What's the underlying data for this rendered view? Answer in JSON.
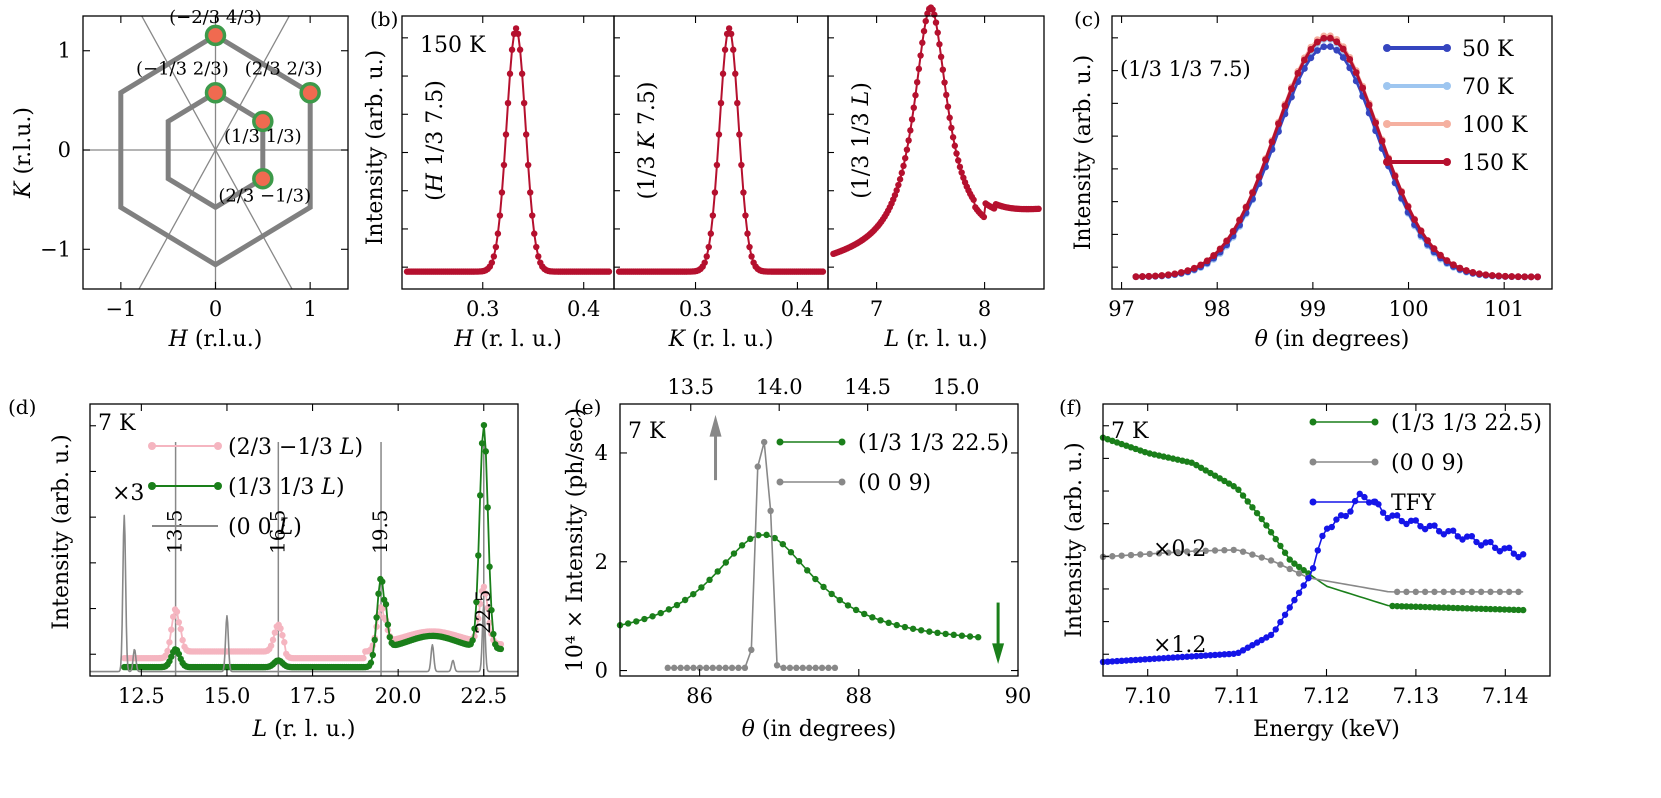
{
  "panels": [
    {
      "id": "a",
      "label": "",
      "x_label": {
        "pre": "",
        "it": "H",
        "post": " (r.l.u.)"
      },
      "y_label": {
        "pre": "",
        "it": "K",
        "post": " (r.l.u.)"
      },
      "x_ticks": [
        {
          "v": -1,
          "t": "−1"
        },
        {
          "v": 0,
          "t": "0"
        },
        {
          "v": 1,
          "t": "1"
        }
      ],
      "y_ticks": [
        {
          "v": -1,
          "t": "−1"
        },
        {
          "v": 0,
          "t": "0"
        },
        {
          "v": 1,
          "t": "1"
        }
      ],
      "xlim": [
        -1.4,
        1.4
      ],
      "ylim": [
        -1.4,
        1.35
      ],
      "annotations": [
        {
          "t": "(−2/3 4/3)",
          "x": 0.0,
          "y": 1.28
        },
        {
          "t": "(−1/3 2/3)",
          "x": -0.35,
          "y": 0.76
        },
        {
          "t": "(2/3 2/3)",
          "x": 0.72,
          "y": 0.76
        },
        {
          "t": "(1/3 1/3)",
          "x": 0.5,
          "y": 0.08
        },
        {
          "t": "(2/3 −1/3)",
          "x": 0.52,
          "y": -0.52
        }
      ]
    },
    {
      "id": "b1",
      "label": "(b)",
      "temp": "150 K",
      "x_label": {
        "pre": "",
        "it": "H",
        "post": " (r. l. u.)"
      },
      "y_label": {
        "pre": "Intensity (arb. u.)",
        "it": "",
        "post": ""
      },
      "inner": {
        "pre": "(",
        "it": "H",
        "post": " 1/3 7.5)"
      },
      "x_ticks": [
        {
          "v": 0.3,
          "t": "0.3"
        },
        {
          "v": 0.4,
          "t": "0.4"
        }
      ]
    },
    {
      "id": "b2",
      "label": "",
      "x_label": {
        "pre": "",
        "it": "K",
        "post": " (r. l. u.)"
      },
      "inner": {
        "pre": "(1/3 ",
        "it": "K",
        "post": " 7.5)"
      },
      "x_ticks": [
        {
          "v": 0.3,
          "t": "0.3"
        },
        {
          "v": 0.4,
          "t": "0.4"
        }
      ]
    },
    {
      "id": "b3",
      "label": "",
      "x_label": {
        "pre": "",
        "it": "L",
        "post": " (r. l. u.)"
      },
      "inner": {
        "pre": "(1/3 1/3 ",
        "it": "L",
        "post": ")"
      },
      "x_ticks": [
        {
          "v": 7,
          "t": "7"
        },
        {
          "v": 8,
          "t": "8"
        }
      ]
    },
    {
      "id": "c",
      "label": "(c)",
      "inner": "(1/3 1/3 7.5)",
      "x_label": {
        "pre": "",
        "it": "θ",
        "post": " (in degrees)"
      },
      "y_label": {
        "pre": "Intensity (arb. u.)",
        "it": "",
        "post": ""
      },
      "x_ticks": [
        {
          "v": 97,
          "t": "97"
        },
        {
          "v": 98,
          "t": "98"
        },
        {
          "v": 99,
          "t": "99"
        },
        {
          "v": 100,
          "t": "100"
        },
        {
          "v": 101,
          "t": "101"
        }
      ],
      "legend": [
        "50 K",
        "70 K",
        "100 K",
        "150 K"
      ]
    },
    {
      "id": "d",
      "label": "(d)",
      "temp": "7 K",
      "scale_note": "×3",
      "x_label": {
        "pre": "",
        "it": "L",
        "post": " (r. l. u.)"
      },
      "y_label": {
        "pre": "Intensity (arb. u.)",
        "it": "",
        "post": ""
      },
      "x_ticks": [
        {
          "v": 12.5,
          "t": "12.5"
        },
        {
          "v": 15,
          "t": "15.0"
        },
        {
          "v": 17.5,
          "t": "17.5"
        },
        {
          "v": 20,
          "t": "20.0"
        },
        {
          "v": 22.5,
          "t": "22.5"
        }
      ],
      "peak_marks": [
        {
          "v": 13.5,
          "t": "13.5"
        },
        {
          "v": 16.5,
          "t": "16.5"
        },
        {
          "v": 19.5,
          "t": "19.5"
        },
        {
          "v": 22.5,
          "t": "22.5"
        }
      ],
      "legend": [
        {
          "pre": "(2/3 −1/3 ",
          "it": "L",
          "post": ")"
        },
        {
          "pre": "(1/3 1/3 ",
          "it": "L",
          "post": ")"
        },
        {
          "pre": "(0 0 ",
          "it": "L",
          "post": ")"
        }
      ]
    },
    {
      "id": "e",
      "label": "(e)",
      "temp": "7 K",
      "x_label": {
        "pre": "",
        "it": "θ",
        "post": " (in degrees)"
      },
      "y_label": {
        "pre": "10⁴ × Intensity (ph/sec)",
        "it": "",
        "post": ""
      },
      "x_ticks": [
        {
          "v": 86,
          "t": "86"
        },
        {
          "v": 88,
          "t": "88"
        },
        {
          "v": 90,
          "t": "90"
        }
      ],
      "top_ticks": [
        {
          "v": 13.5,
          "t": "13.5"
        },
        {
          "v": 14.0,
          "t": "14.0"
        },
        {
          "v": 14.5,
          "t": "14.5"
        },
        {
          "v": 15.0,
          "t": "15.0"
        }
      ],
      "y_ticks": [
        {
          "v": 0,
          "t": "0"
        },
        {
          "v": 2,
          "t": "2"
        },
        {
          "v": 4,
          "t": "4"
        }
      ],
      "legend": [
        "(1/3 1/3 22.5)",
        "(0 0 9)"
      ]
    },
    {
      "id": "f",
      "label": "(f)",
      "temp": "7 K",
      "x_label": {
        "pre": "Energy (keV)",
        "it": "",
        "post": ""
      },
      "y_label": {
        "pre": "Intensity (arb. u.)",
        "it": "",
        "post": ""
      },
      "x_ticks": [
        {
          "v": 7.1,
          "t": "7.10"
        },
        {
          "v": 7.11,
          "t": "7.11"
        },
        {
          "v": 7.12,
          "t": "7.12"
        },
        {
          "v": 7.13,
          "t": "7.13"
        },
        {
          "v": 7.14,
          "t": "7.14"
        }
      ],
      "scale_notes": [
        "×0.2",
        "×1.2"
      ],
      "legend": [
        "(1/3 1/3 22.5)",
        "(0 0 9)",
        "TFY"
      ]
    }
  ],
  "colors": {
    "red": "#b5102e",
    "green": "#1a7f1a",
    "gray": "#888888",
    "pink": "#f5b5c0",
    "blue": "#1515e8",
    "navy": "#3545bf",
    "lightblue": "#9ec6f0",
    "salmon": "#f5b0a0",
    "hexgray": "#808080",
    "dotfill": "#f06a50",
    "dotedge": "#3d9a4a"
  },
  "chart_data": [
    {
      "type": "scatter",
      "panel": "a",
      "x_range": [
        -1.4,
        1.4
      ],
      "y_range": [
        -1.4,
        1.35
      ],
      "points": [
        {
          "H": 0.0,
          "K": 1.155
        },
        {
          "H": 0.0,
          "K": 0.577
        },
        {
          "H": 1.0,
          "K": 0.577
        },
        {
          "H": 0.5,
          "K": 0.289
        },
        {
          "H": 0.5,
          "K": -0.289
        }
      ],
      "hexagons": [
        {
          "center": [
            0,
            0
          ],
          "circumradius": 1.155
        },
        {
          "center": [
            0,
            0
          ],
          "circumradius": 0.577
        }
      ]
    },
    {
      "type": "line",
      "panel": "b1",
      "x_range": [
        0.22,
        0.43
      ],
      "series": [
        {
          "peak_center": 0.333,
          "fwhm": 0.022,
          "baseline": 0.02,
          "x_start": 0.225,
          "x_end": 0.425
        }
      ]
    },
    {
      "type": "line",
      "panel": "b2",
      "x_range": [
        0.22,
        0.43
      ],
      "series": [
        {
          "peak_center": 0.333,
          "fwhm": 0.022,
          "baseline": 0.02,
          "x_start": 0.225,
          "x_end": 0.425
        }
      ]
    },
    {
      "type": "line",
      "panel": "b3",
      "x_range": [
        6.55,
        8.55
      ],
      "series": [
        {
          "peak_center": 7.5,
          "fwhm": 0.38,
          "baseline": 0.0,
          "x_start": 6.6,
          "x_end": 8.5,
          "dip_at": 8.0
        }
      ]
    },
    {
      "type": "line",
      "panel": "c",
      "x_range": [
        96.9,
        101.5
      ],
      "series": [
        {
          "name": "50 K",
          "peak_center": 99.15,
          "sigma": 0.53,
          "amplitude": 0.955
        },
        {
          "name": "70 K",
          "peak_center": 99.15,
          "sigma": 0.52,
          "amplitude": 0.985
        },
        {
          "name": "100 K",
          "peak_center": 99.15,
          "sigma": 0.54,
          "amplitude": 1.0
        },
        {
          "name": "150 K",
          "peak_center": 99.15,
          "sigma": 0.54,
          "amplitude": 0.99
        }
      ]
    },
    {
      "type": "line",
      "panel": "d",
      "x_range": [
        11.0,
        23.5
      ],
      "series": [
        {
          "name": "(2/3 −1/3 L)",
          "peaks": [
            [
              13.5,
              0.22
            ],
            [
              16.5,
              0.12
            ],
            [
              19.5,
              0.2
            ],
            [
              22.5,
              0.25
            ]
          ],
          "baseline": 0.06
        },
        {
          "name": "(1/3 1/3 L)",
          "peaks": [
            [
              13.5,
              0.08
            ],
            [
              16.5,
              0.03
            ],
            [
              19.5,
              0.4
            ],
            [
              22.5,
              1.0
            ]
          ],
          "baseline": 0.02
        },
        {
          "name": "(0 0 L)",
          "peaks": [
            [
              12.0,
              0.7
            ],
            [
              12.3,
              0.1
            ],
            [
              15.0,
              0.25
            ],
            [
              21.0,
              0.12
            ],
            [
              21.6,
              0.05
            ],
            [
              22.5,
              0.3
            ]
          ],
          "baseline": 0.0
        }
      ]
    },
    {
      "type": "line",
      "panel": "e",
      "x_range": [
        85.0,
        90.0
      ],
      "y_range": [
        -0.1,
        4.9
      ],
      "top_axis_range": [
        13.1,
        15.35
      ],
      "series": [
        {
          "name": "(1/3 1/3 22.5)",
          "peak_center": 86.8,
          "peak_value": 2.52,
          "baseline_left": 0.5,
          "baseline_right": 0.45,
          "x_start": 85.0,
          "x_end": 89.5
        },
        {
          "name": "(0 0 9)",
          "peak_center": 86.8,
          "peak_value": 4.2,
          "x_start": 85.6,
          "x_end": 87.7
        }
      ]
    },
    {
      "type": "line",
      "panel": "f",
      "x_range": [
        7.095,
        7.145
      ],
      "series": [
        {
          "name": "(1/3 1/3 22.5)",
          "x": [
            7.095,
            7.1,
            7.105,
            7.11,
            7.113,
            7.116,
            7.12,
            7.127,
            7.142
          ],
          "y": [
            0.8,
            0.745,
            0.71,
            0.62,
            0.5,
            0.36,
            0.27,
            0.2,
            0.185
          ]
        },
        {
          "name": "(0 0 9)",
          "x": [
            7.095,
            7.105,
            7.11,
            7.114,
            7.118,
            7.127,
            7.142
          ],
          "y": [
            0.375,
            0.395,
            0.4,
            0.36,
            0.3,
            0.25,
            0.25
          ]
        },
        {
          "name": "TFY",
          "x": [
            7.095,
            7.11,
            7.114,
            7.118,
            7.12,
            7.122,
            7.124,
            7.127,
            7.135,
            7.142
          ],
          "y": [
            0.0,
            0.03,
            0.1,
            0.3,
            0.48,
            0.52,
            0.6,
            0.52,
            0.45,
            0.38
          ]
        }
      ]
    }
  ]
}
